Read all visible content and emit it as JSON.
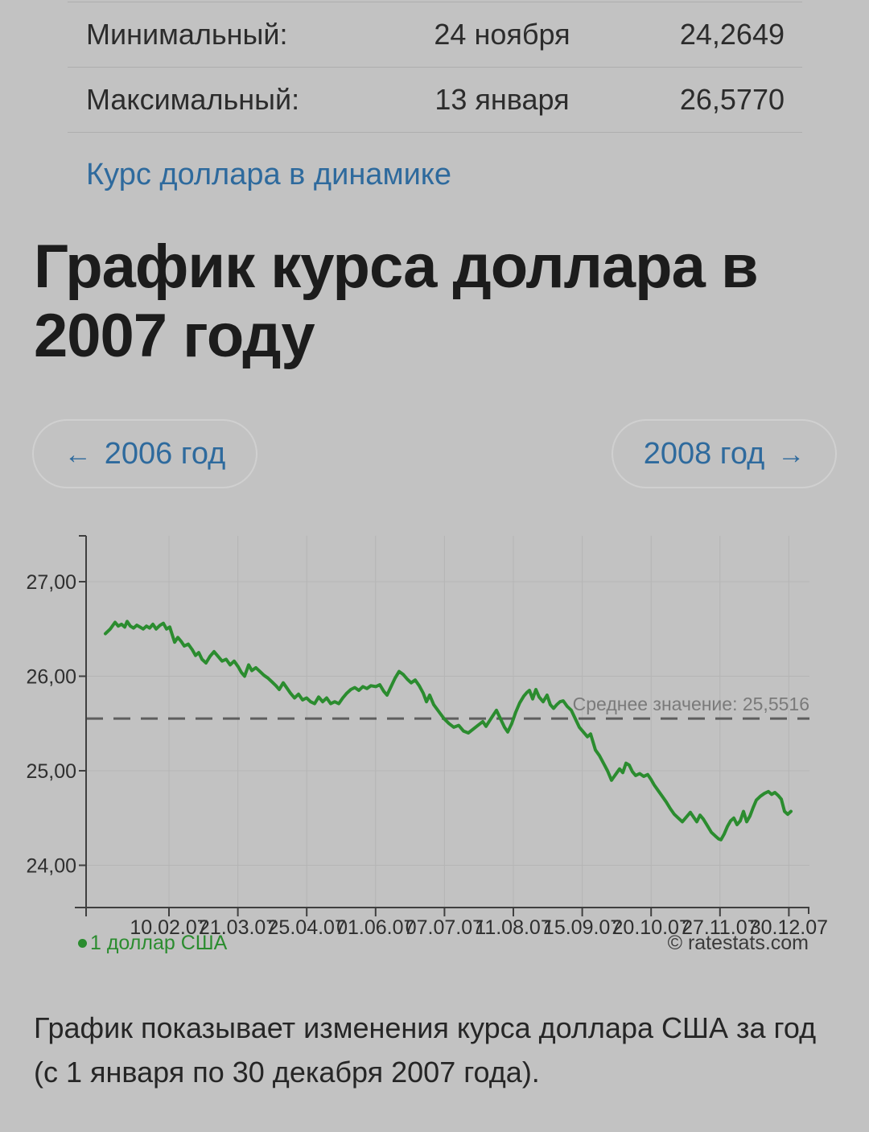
{
  "stats": {
    "rows": [
      {
        "label": "Минимальный:",
        "date": "24 ноября",
        "value": "24,2649"
      },
      {
        "label": "Максимальный:",
        "date": "13 января",
        "value": "26,5770"
      }
    ]
  },
  "dynamics_link": "Курс доллара в динамике",
  "heading": "График курса доллара в 2007 году",
  "nav": {
    "prev_arrow": "←",
    "prev_label": "2006 год",
    "next_label": "2008 год",
    "next_arrow": "→"
  },
  "description": "График показывает изменения курса доллара США за год (с 1 января по 30 декабря 2007 года).",
  "chart_data": {
    "type": "line",
    "title": "График курса доллара в 2007 году",
    "xlabel": "",
    "ylabel": "",
    "x_tick_labels": [
      "10.02.07",
      "21.03.07",
      "25.04.07",
      "01.06.07",
      "07.07.07",
      "11.08.07",
      "15.09.07",
      "20.10.07",
      "27.11.07",
      "30.12.07"
    ],
    "y_ticks": [
      {
        "value": 27,
        "label": "27,00"
      },
      {
        "value": 26,
        "label": "26,00"
      },
      {
        "value": 25,
        "label": "25,00"
      },
      {
        "value": 24,
        "label": "24,00"
      }
    ],
    "ylim": [
      23.55,
      27.6
    ],
    "grid": true,
    "legend_position": "bottom-left",
    "average": {
      "value": 25.5516,
      "label": "Среднее значение: 25,5516"
    },
    "annotations": {
      "min": {
        "date": "24 ноября",
        "value": 24.2649
      },
      "max": {
        "date": "13 января",
        "value": 26.577
      }
    },
    "legend": {
      "series_label": "1 доллар США",
      "copyright": "© ratestats.com",
      "marker_color": "#2b8c2f"
    },
    "colors": {
      "grid": "#b5b5b5",
      "axis": "#3f3f3f",
      "average_line": "#5e5e5e"
    },
    "series": [
      {
        "name": "1 доллар США",
        "color": "#2b8c2f",
        "points": [
          [
            0.0,
            26.45
          ],
          [
            0.007,
            26.5
          ],
          [
            0.0141,
            26.57
          ],
          [
            0.0188,
            26.53
          ],
          [
            0.0235,
            26.55
          ],
          [
            0.0282,
            26.52
          ],
          [
            0.0317,
            26.58
          ],
          [
            0.0364,
            26.53
          ],
          [
            0.0411,
            26.51
          ],
          [
            0.0458,
            26.54
          ],
          [
            0.0505,
            26.52
          ],
          [
            0.0552,
            26.5
          ],
          [
            0.0599,
            26.53
          ],
          [
            0.0645,
            26.51
          ],
          [
            0.0692,
            26.55
          ],
          [
            0.0739,
            26.5
          ],
          [
            0.0798,
            26.54
          ],
          [
            0.0845,
            26.56
          ],
          [
            0.0892,
            26.5
          ],
          [
            0.0939,
            26.52
          ],
          [
            0.0974,
            26.44
          ],
          [
            0.1009,
            26.36
          ],
          [
            0.1056,
            26.41
          ],
          [
            0.1103,
            26.37
          ],
          [
            0.115,
            26.32
          ],
          [
            0.1209,
            26.34
          ],
          [
            0.1268,
            26.28
          ],
          [
            0.1315,
            26.22
          ],
          [
            0.1362,
            26.25
          ],
          [
            0.1408,
            26.18
          ],
          [
            0.1467,
            26.14
          ],
          [
            0.1526,
            26.21
          ],
          [
            0.1585,
            26.26
          ],
          [
            0.1643,
            26.21
          ],
          [
            0.1702,
            26.16
          ],
          [
            0.1761,
            26.18
          ],
          [
            0.1819,
            26.12
          ],
          [
            0.1878,
            26.16
          ],
          [
            0.1937,
            26.1
          ],
          [
            0.1984,
            26.04
          ],
          [
            0.2031,
            26.0
          ],
          [
            0.2089,
            26.12
          ],
          [
            0.2136,
            26.06
          ],
          [
            0.2195,
            26.09
          ],
          [
            0.2254,
            26.05
          ],
          [
            0.2312,
            26.01
          ],
          [
            0.2371,
            25.98
          ],
          [
            0.243,
            25.94
          ],
          [
            0.2488,
            25.9
          ],
          [
            0.2535,
            25.86
          ],
          [
            0.2594,
            25.93
          ],
          [
            0.2653,
            25.87
          ],
          [
            0.27,
            25.82
          ],
          [
            0.2758,
            25.77
          ],
          [
            0.2817,
            25.81
          ],
          [
            0.2876,
            25.75
          ],
          [
            0.2934,
            25.77
          ],
          [
            0.2993,
            25.73
          ],
          [
            0.3052,
            25.71
          ],
          [
            0.311,
            25.78
          ],
          [
            0.3169,
            25.73
          ],
          [
            0.3228,
            25.77
          ],
          [
            0.3286,
            25.71
          ],
          [
            0.3345,
            25.73
          ],
          [
            0.3404,
            25.71
          ],
          [
            0.3462,
            25.77
          ],
          [
            0.3521,
            25.82
          ],
          [
            0.358,
            25.86
          ],
          [
            0.3638,
            25.88
          ],
          [
            0.3697,
            25.85
          ],
          [
            0.3756,
            25.89
          ],
          [
            0.3814,
            25.87
          ],
          [
            0.3873,
            25.9
          ],
          [
            0.3944,
            25.89
          ],
          [
            0.4002,
            25.91
          ],
          [
            0.4061,
            25.84
          ],
          [
            0.4108,
            25.8
          ],
          [
            0.4167,
            25.89
          ],
          [
            0.4225,
            25.98
          ],
          [
            0.4284,
            26.05
          ],
          [
            0.4343,
            26.02
          ],
          [
            0.4401,
            25.97
          ],
          [
            0.446,
            25.93
          ],
          [
            0.4519,
            25.96
          ],
          [
            0.4577,
            25.9
          ],
          [
            0.4636,
            25.82
          ],
          [
            0.4683,
            25.73
          ],
          [
            0.473,
            25.8
          ],
          [
            0.4789,
            25.7
          ],
          [
            0.4859,
            25.63
          ],
          [
            0.4941,
            25.55
          ],
          [
            0.5012,
            25.5
          ],
          [
            0.5082,
            25.46
          ],
          [
            0.5153,
            25.48
          ],
          [
            0.5223,
            25.42
          ],
          [
            0.5293,
            25.4
          ],
          [
            0.5364,
            25.44
          ],
          [
            0.5434,
            25.48
          ],
          [
            0.5505,
            25.52
          ],
          [
            0.5552,
            25.47
          ],
          [
            0.5622,
            25.55
          ],
          [
            0.5704,
            25.64
          ],
          [
            0.5763,
            25.55
          ],
          [
            0.5822,
            25.46
          ],
          [
            0.5869,
            25.41
          ],
          [
            0.5927,
            25.5
          ],
          [
            0.5986,
            25.62
          ],
          [
            0.6045,
            25.72
          ],
          [
            0.6103,
            25.79
          ],
          [
            0.615,
            25.83
          ],
          [
            0.6185,
            25.85
          ],
          [
            0.6232,
            25.76
          ],
          [
            0.6279,
            25.86
          ],
          [
            0.6326,
            25.78
          ],
          [
            0.6385,
            25.73
          ],
          [
            0.6443,
            25.8
          ],
          [
            0.649,
            25.7
          ],
          [
            0.6537,
            25.66
          ],
          [
            0.6584,
            25.7
          ],
          [
            0.6631,
            25.73
          ],
          [
            0.6678,
            25.74
          ],
          [
            0.6737,
            25.68
          ],
          [
            0.6796,
            25.64
          ],
          [
            0.6854,
            25.55
          ],
          [
            0.6913,
            25.46
          ],
          [
            0.6972,
            25.41
          ],
          [
            0.703,
            25.36
          ],
          [
            0.7077,
            25.39
          ],
          [
            0.7148,
            25.22
          ],
          [
            0.7207,
            25.16
          ],
          [
            0.7265,
            25.08
          ],
          [
            0.7324,
            25.0
          ],
          [
            0.7383,
            24.9
          ],
          [
            0.7441,
            24.96
          ],
          [
            0.75,
            25.02
          ],
          [
            0.7547,
            24.98
          ],
          [
            0.7594,
            25.08
          ],
          [
            0.7641,
            25.06
          ],
          [
            0.7688,
            24.99
          ],
          [
            0.7735,
            24.95
          ],
          [
            0.7793,
            24.97
          ],
          [
            0.7852,
            24.94
          ],
          [
            0.7911,
            24.96
          ],
          [
            0.7958,
            24.91
          ],
          [
            0.8005,
            24.85
          ],
          [
            0.8063,
            24.79
          ],
          [
            0.8122,
            24.73
          ],
          [
            0.8181,
            24.67
          ],
          [
            0.8239,
            24.6
          ],
          [
            0.8298,
            24.54
          ],
          [
            0.8357,
            24.5
          ],
          [
            0.8415,
            24.46
          ],
          [
            0.8474,
            24.51
          ],
          [
            0.8533,
            24.56
          ],
          [
            0.858,
            24.51
          ],
          [
            0.8627,
            24.46
          ],
          [
            0.8674,
            24.53
          ],
          [
            0.8721,
            24.49
          ],
          [
            0.8779,
            24.42
          ],
          [
            0.8838,
            24.35
          ],
          [
            0.8897,
            24.31
          ],
          [
            0.8944,
            24.28
          ],
          [
            0.8979,
            24.27
          ],
          [
            0.9026,
            24.33
          ],
          [
            0.9073,
            24.41
          ],
          [
            0.912,
            24.47
          ],
          [
            0.9167,
            24.5
          ],
          [
            0.9214,
            24.43
          ],
          [
            0.9261,
            24.47
          ],
          [
            0.9308,
            24.57
          ],
          [
            0.9355,
            24.46
          ],
          [
            0.9401,
            24.52
          ],
          [
            0.9448,
            24.61
          ],
          [
            0.9495,
            24.69
          ],
          [
            0.9554,
            24.73
          ],
          [
            0.9613,
            24.76
          ],
          [
            0.9671,
            24.78
          ],
          [
            0.9718,
            24.75
          ],
          [
            0.9765,
            24.77
          ],
          [
            0.9812,
            24.74
          ],
          [
            0.9859,
            24.7
          ],
          [
            0.9906,
            24.57
          ],
          [
            0.9953,
            24.54
          ],
          [
            1.0,
            24.57
          ]
        ]
      }
    ]
  }
}
